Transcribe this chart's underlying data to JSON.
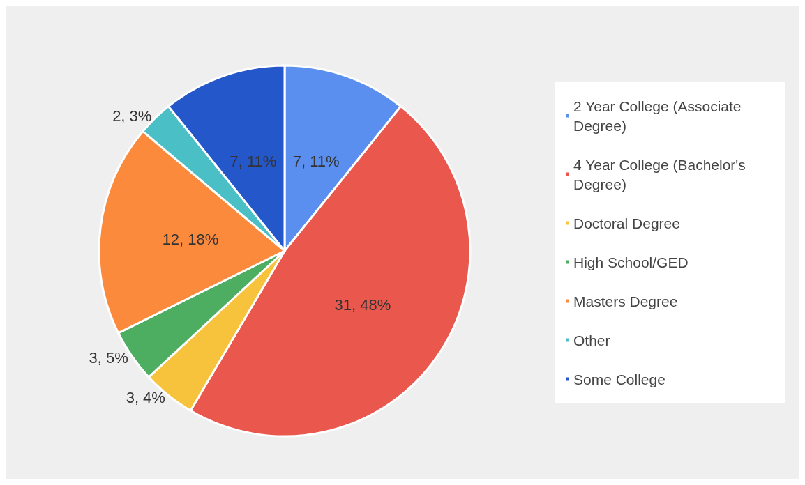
{
  "chart_data": {
    "type": "pie",
    "categories": [
      "2 Year College (Associate Degree)",
      "4 Year College (Bachelor's Degree)",
      "Doctoral Degree",
      "High School/GED",
      "Masters Degree",
      "Other",
      "Some College"
    ],
    "values": [
      7,
      31,
      3,
      3,
      12,
      2,
      7
    ],
    "value_labels": [
      "7, 11%",
      "31, 48%",
      "3, 4%",
      "3, 5%",
      "12, 18%",
      "2, 3%",
      "7, 11%"
    ],
    "colors": [
      "#5a8ff0",
      "#e9574d",
      "#f7c33c",
      "#4dae62",
      "#fb8a3c",
      "#4bbfc6",
      "#2457c9"
    ],
    "legend": "right"
  }
}
